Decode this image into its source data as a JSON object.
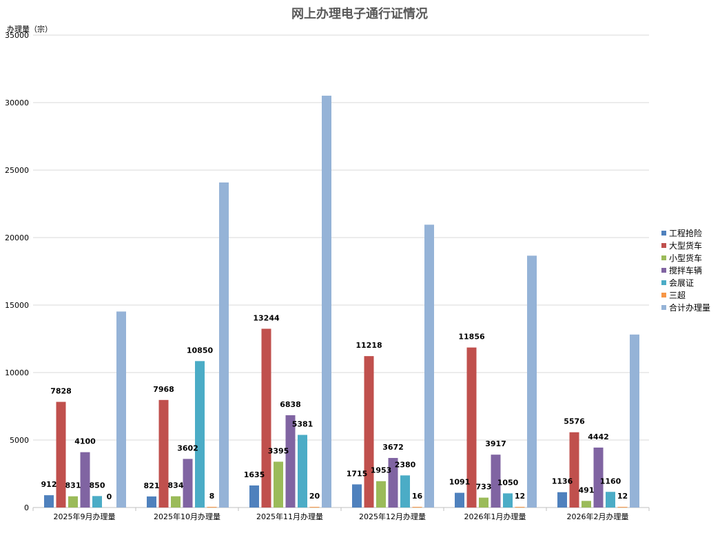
{
  "chart_data": {
    "type": "bar",
    "title": "网上办理电子通行证情况",
    "ylabel": "办理量（宗）",
    "xlabel": "",
    "ylim": [
      0,
      35000
    ],
    "yticks": [
      0,
      5000,
      10000,
      15000,
      20000,
      25000,
      30000,
      35000
    ],
    "grid": true,
    "legend_position": "right",
    "categories": [
      "2025年9月办理量",
      "2025年10月办理量",
      "2025年11月办理量",
      "2025年12月办理量",
      "2026年1月办理量",
      "2026年2月办理量"
    ],
    "series": [
      {
        "name": "工程抢险",
        "color": "#4F81BD",
        "show_labels": true,
        "values": [
          912,
          821,
          1635,
          1715,
          1091,
          1136
        ]
      },
      {
        "name": "大型货车",
        "color": "#C0504D",
        "show_labels": true,
        "values": [
          7828,
          7968,
          13244,
          11218,
          11856,
          5576
        ]
      },
      {
        "name": "小型货车",
        "color": "#9BBB59",
        "show_labels": true,
        "values": [
          831,
          834,
          3395,
          1953,
          733,
          491
        ]
      },
      {
        "name": "搅拌车辆",
        "color": "#8064A2",
        "show_labels": true,
        "values": [
          4100,
          3602,
          6838,
          3672,
          3917,
          4442
        ]
      },
      {
        "name": "会展证",
        "color": "#4BACC6",
        "show_labels": true,
        "values": [
          850,
          10850,
          5381,
          2380,
          1050,
          1160
        ]
      },
      {
        "name": "三超",
        "color": "#F79646",
        "show_labels": true,
        "values": [
          0,
          8,
          20,
          16,
          12,
          12
        ]
      },
      {
        "name": "合计办理量",
        "color": "#95B3D7",
        "show_labels": false,
        "values": [
          14521,
          24083,
          30513,
          20954,
          18659,
          12817
        ]
      }
    ]
  }
}
